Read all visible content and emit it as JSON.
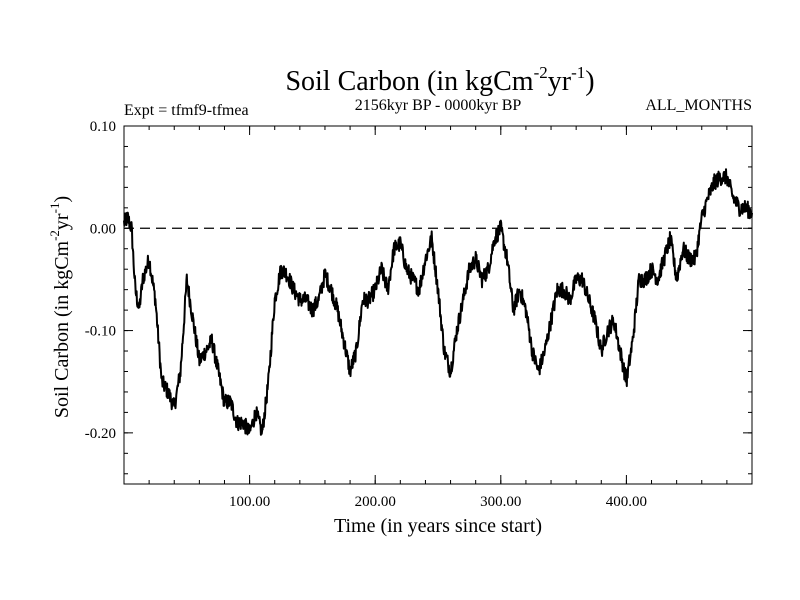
{
  "chart_data": {
    "type": "line",
    "title": {
      "main": "Soil Carbon (in kgCm",
      "sup1": "-2",
      "mid": "yr",
      "sup2": "-1",
      "end": ")"
    },
    "subtitle_left": "Expt = tfmf9-tfmea",
    "subtitle_center": "2156kyr BP - 0000kyr BP",
    "subtitle_right": "ALL_MONTHS",
    "xlabel": "Time (in years since start)",
    "ylabel": {
      "main": "Soil Carbon (in kgCm",
      "sup1": "-2",
      "mid": "yr",
      "sup2": "-1",
      "end": ")"
    },
    "xlim": [
      0,
      500
    ],
    "ylim": [
      -0.25,
      0.1
    ],
    "xticks": [
      100,
      200,
      300,
      400
    ],
    "xtick_labels": [
      "100.00",
      "200.00",
      "300.00",
      "400.00"
    ],
    "yticks": [
      0.1,
      0.0,
      -0.1,
      -0.2
    ],
    "ytick_labels": [
      "0.10",
      "0.00",
      "-0.10",
      "-0.20"
    ],
    "reference_line": {
      "y": 0.0,
      "style": "dashed"
    },
    "series": [
      {
        "name": "Soil Carbon",
        "color": "#000000",
        "x": [
          0,
          3,
          6,
          9,
          12,
          15,
          20,
          25,
          30,
          35,
          40,
          45,
          50,
          55,
          60,
          65,
          70,
          75,
          80,
          85,
          90,
          95,
          100,
          105,
          110,
          115,
          120,
          125,
          130,
          135,
          140,
          145,
          150,
          155,
          160,
          165,
          170,
          175,
          180,
          185,
          190,
          195,
          200,
          205,
          210,
          215,
          220,
          225,
          230,
          235,
          240,
          245,
          250,
          255,
          260,
          265,
          270,
          275,
          280,
          285,
          290,
          295,
          300,
          305,
          310,
          315,
          320,
          325,
          330,
          335,
          340,
          345,
          350,
          355,
          360,
          365,
          370,
          375,
          380,
          385,
          390,
          395,
          400,
          405,
          410,
          415,
          420,
          425,
          430,
          435,
          440,
          445,
          450,
          455,
          460,
          465,
          470,
          475,
          480,
          485,
          490,
          495,
          500
        ],
        "y": [
          0.005,
          0.01,
          0.0,
          -0.06,
          -0.08,
          -0.05,
          -0.03,
          -0.07,
          -0.15,
          -0.16,
          -0.175,
          -0.14,
          -0.05,
          -0.09,
          -0.13,
          -0.12,
          -0.11,
          -0.14,
          -0.17,
          -0.17,
          -0.19,
          -0.19,
          -0.2,
          -0.18,
          -0.2,
          -0.15,
          -0.07,
          -0.04,
          -0.045,
          -0.06,
          -0.07,
          -0.07,
          -0.08,
          -0.07,
          -0.045,
          -0.06,
          -0.08,
          -0.11,
          -0.14,
          -0.12,
          -0.07,
          -0.07,
          -0.06,
          -0.04,
          -0.06,
          -0.02,
          -0.015,
          -0.04,
          -0.05,
          -0.06,
          -0.03,
          -0.01,
          -0.06,
          -0.12,
          -0.14,
          -0.1,
          -0.07,
          -0.04,
          -0.03,
          -0.05,
          -0.04,
          -0.01,
          0.0,
          -0.03,
          -0.08,
          -0.06,
          -0.08,
          -0.12,
          -0.14,
          -0.12,
          -0.09,
          -0.06,
          -0.06,
          -0.07,
          -0.05,
          -0.05,
          -0.07,
          -0.09,
          -0.12,
          -0.1,
          -0.09,
          -0.12,
          -0.15,
          -0.11,
          -0.05,
          -0.05,
          -0.04,
          -0.05,
          -0.03,
          -0.01,
          -0.05,
          -0.02,
          -0.03,
          -0.03,
          0.01,
          0.03,
          0.045,
          0.05,
          0.05,
          0.03,
          0.02,
          0.02,
          0.015
        ]
      }
    ]
  }
}
